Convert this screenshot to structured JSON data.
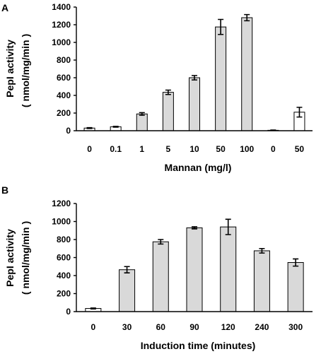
{
  "chart_data": [
    {
      "panel": "A",
      "type": "bar",
      "categories": [
        "0",
        "0.1",
        "1",
        "5",
        "10",
        "50",
        "100",
        "0",
        "50"
      ],
      "values": [
        30,
        45,
        190,
        435,
        600,
        1175,
        1280,
        5,
        210
      ],
      "errors": [
        5,
        5,
        15,
        25,
        25,
        85,
        35,
        3,
        55
      ],
      "fills": [
        "#ffffff",
        "#ffffff",
        "#d9d9d9",
        "#d9d9d9",
        "#d9d9d9",
        "#d9d9d9",
        "#d9d9d9",
        "#ffffff",
        "#ffffff"
      ],
      "ylim": [
        0,
        1400
      ],
      "yticks": [
        "0",
        "200",
        "400",
        "600",
        "800",
        "1000",
        "1200",
        "1400"
      ],
      "xlabel": "Mannan (mg/l)",
      "ylabel": "PepI activity",
      "ylabel_units": "( nmol/mg/min )"
    },
    {
      "panel": "B",
      "type": "bar",
      "categories": [
        "0",
        "30",
        "60",
        "90",
        "120",
        "240",
        "300"
      ],
      "values": [
        35,
        465,
        775,
        930,
        940,
        675,
        545
      ],
      "errors": [
        5,
        35,
        25,
        12,
        85,
        25,
        40
      ],
      "fills": [
        "#ffffff",
        "#d9d9d9",
        "#d9d9d9",
        "#d9d9d9",
        "#d9d9d9",
        "#d9d9d9",
        "#d9d9d9"
      ],
      "ylim": [
        0,
        1200
      ],
      "yticks": [
        "0",
        "200",
        "400",
        "600",
        "800",
        "1000",
        "1200"
      ],
      "xlabel": "Induction time (minutes)",
      "ylabel": "PepI activity",
      "ylabel_units": "( nmol/mg/min )"
    }
  ]
}
